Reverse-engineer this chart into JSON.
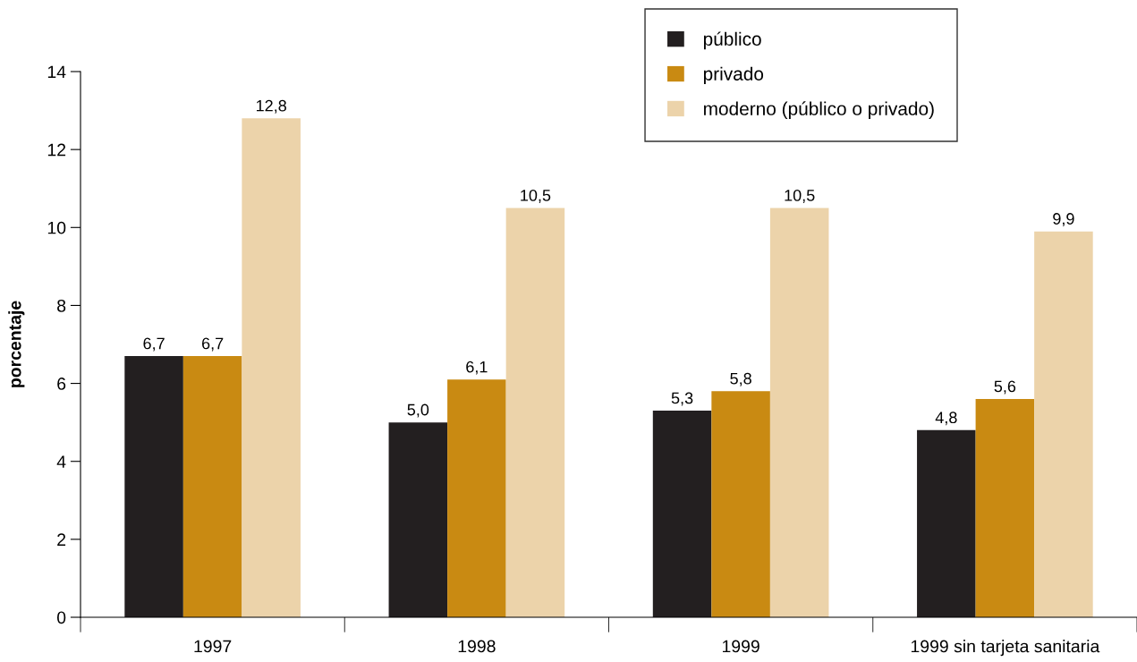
{
  "chart_data": {
    "type": "bar",
    "ylabel": "porcentaje",
    "categories": [
      "1997",
      "1998",
      "1999",
      "1999 sin tarjeta sanitaria"
    ],
    "series": [
      {
        "name": "público",
        "color": "#231f20",
        "values": [
          6.7,
          5.0,
          5.3,
          4.8
        ],
        "value_labels": [
          "6,7",
          "5,0",
          "5,3",
          "4,8"
        ]
      },
      {
        "name": "privado",
        "color": "#c98a12",
        "values": [
          6.7,
          6.1,
          5.8,
          5.6
        ],
        "value_labels": [
          "6,7",
          "6,1",
          "5,8",
          "5,6"
        ]
      },
      {
        "name": "moderno (público o privado)",
        "color": "#ecd3aa",
        "values": [
          12.8,
          10.5,
          10.5,
          9.9
        ],
        "value_labels": [
          "12,8",
          "10,5",
          "10,5",
          "9,9"
        ]
      }
    ],
    "ylim": [
      0,
      14
    ],
    "yticks": [
      0,
      2,
      4,
      6,
      8,
      10,
      12,
      14
    ],
    "grid": false,
    "legend": "top right"
  }
}
